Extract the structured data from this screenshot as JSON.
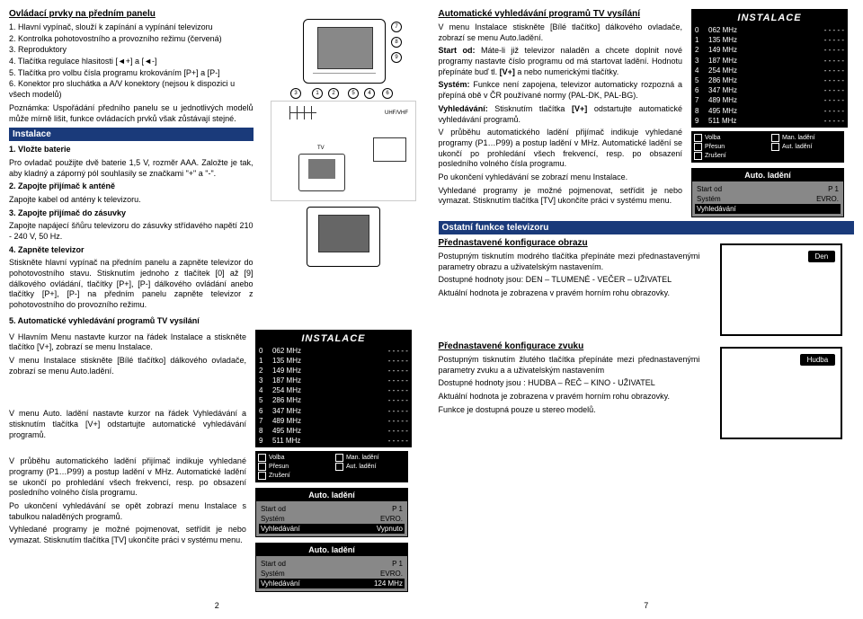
{
  "col1": {
    "title": "Ovládací prvky na předním panelu",
    "items": [
      "1. Hlavní vypínač, slouží k zapínání a vypínání televizoru",
      "2. Kontrolka pohotovostního a provozního režimu (červená)",
      "3. Reproduktory",
      "4. Tlačítka regulace hlasitosti [◄+] a [◄-]",
      "5. Tlačítka pro volbu čísla programu krokováním [P+] a [P-]",
      "6. Konektor pro sluchátka a A/V konektory (nejsou k dispozici u všech modelů)"
    ],
    "note": "Poznámka: Uspořádání předního panelu se u jednotlivých modelů může mírně lišit, funkce ovládacích prvků však zůstávají stejné.",
    "instalace_header": "Instalace",
    "steps": {
      "s1_title": "1. Vložte baterie",
      "s1_text": "Pro ovladač použijte dvě baterie 1,5 V, rozměr AAA. Založte je tak, aby kladný a záporný pól souhlasily se značkami \"+\" a \"-\".",
      "s2_title": "2. Zapojte přijímač k anténě",
      "s2_text": "Zapojte kabel od antény k televizoru.",
      "s3_title": "3. Zapojte přijímač do zásuvky",
      "s3_text": "Zapojte napájecí šňůru televizoru do zásuvky střídavého napětí 210 - 240 V, 50 Hz.",
      "s4_title": "4. Zapněte televizor",
      "s4_text": "Stiskněte hlavní vypínač na předním panelu a zapněte televizor do pohotovostního stavu. Stisknutím jednoho z tlačítek [0] až [9] dálkového ovládání, tlačítky [P+], [P-] dálkového ovládání anebo tlačítky [P+], [P-] na předním panelu zapněte televizor z pohotovostního do provozního režimu.",
      "s5_title": "5. Automatické vyhledávání programů TV vysílání",
      "s5_text1": "V Hlavním Menu nastavte kurzor na řádek Instalace a stiskněte tlačítko [V+], zobrazí se menu Instalace.",
      "s5_text2": "V menu Instalace stiskněte [Bílé tlačítko] dálkového ovladače, zobrazí se menu Auto.ladění."
    },
    "lower1": "V menu Auto. ladění nastavte kurzor na řádek Vyhledávání a stisknutím tlačítka [V+] odstartujte automatické vyhledávání programů.",
    "lower2": "V průběhu automatického ladění přijímač indikuje vyhledané programy (P1…P99) a postup ladění v MHz. Automatické ladění se ukončí po prohledání všech frekvencí, resp. po obsazení posledního volného čísla programu.",
    "lower3": "Po ukončení vyhledávání se opět zobrazí menu Instalace s tabulkou naladěných programů.",
    "lower4": "Vyhledané programy je možné pojmenovat, setřídit je nebo vymazat. Stisknutím tlačítka [TV] ukončíte práci v systému menu.",
    "instalace_panel_header": "INSTALACE",
    "instalace_rows": [
      [
        "0",
        "062 MHz",
        "- - - - -"
      ],
      [
        "1",
        "135 MHz",
        "- - - - -"
      ],
      [
        "2",
        "149 MHz",
        "- - - - -"
      ],
      [
        "3",
        "187 MHz",
        "- - - - -"
      ],
      [
        "4",
        "254 MHz",
        "- - - - -"
      ],
      [
        "5",
        "286 MHz",
        "- - - - -"
      ],
      [
        "6",
        "347 MHz",
        "- - - - -"
      ],
      [
        "7",
        "489 MHz",
        "- - - - -"
      ],
      [
        "8",
        "495 MHz",
        "- - - - -"
      ],
      [
        "9",
        "511 MHz",
        "- - - - -"
      ]
    ],
    "legend": [
      [
        "Volba",
        "Man. ladění"
      ],
      [
        "Přesun",
        "Aut. ladění"
      ],
      [
        "Zrušení",
        ""
      ]
    ],
    "auto1_header": "Auto. ladění",
    "auto1_rows": [
      [
        "Start od",
        "P 1"
      ],
      [
        "Systém",
        "EVRO."
      ]
    ],
    "auto1_black": [
      "Vyhledávání",
      "Vypnuto"
    ],
    "auto2_header": "Auto. ladění",
    "auto2_rows": [
      [
        "Start od",
        "P 1"
      ],
      [
        "Systém",
        "EVRO."
      ]
    ],
    "auto2_black": [
      "Vyhledávání",
      "124 MHz"
    ],
    "page": "2"
  },
  "col2": {
    "title": "Automatické vyhledávání programů TV vysílání",
    "p1": "V menu Instalace stiskněte [Bílé tlačítko] dálkového ovladače, zobrazí se menu Auto.ladění.",
    "p2": "Start od: Máte-li již televizor naladěn a chcete doplnit nové programy nastavte číslo programu od má startovat ladění. Hodnotu přepínáte buď tl. [V+] a nebo numerickými tlačítky.",
    "p3": "Systém: Funkce není zapojena, televizor automaticky rozpozná a přepíná obě v ČR používané normy (PAL-DK, PAL-BG).",
    "p4": "Vyhledávání: Stisknutím tlačítka [V+] odstartujte automatické vyhledávání programů.",
    "p5": "V průběhu automatického ladění přijímač indikuje vyhledané programy (P1…P99) a postup ladění v MHz. Automatické ladění se ukončí po prohledání všech frekvencí, resp. po obsazení posledního volného čísla programu.",
    "p6": "Po ukončení vyhledávání se zobrazí menu Instalace.",
    "p7": "Vyhledané programy je možné pojmenovat, setřídit je nebo vymazat. Stisknutím tlačítka [TV] ukončíte práci v systému menu.",
    "header2": "Ostatní funkce televizoru",
    "sub1": "Přednastavené konfigurace obrazu",
    "sub1_p1": "Postupným tisknutím modrého tlačítka přepínáte mezi přednastavenými parametry obrazu a uživatelským nastavením.",
    "sub1_p2": "Dostupné hodnoty jsou: DEN – TLUMENÉ - VEČER – UŽIVATEL",
    "sub1_p3": "Aktuální hodnota je zobrazena v pravém horním rohu obrazovky.",
    "sub2": "Přednastavené konfigurace zvuku",
    "sub2_p1": "Postupným tisknutím žlutého tlačítka přepínáte mezi přednastavenými parametry zvuku a a uživatelským nastavením",
    "sub2_p2": "Dostupné hodnoty jsou : HUDBA – ŘEČ – KINO - UŽIVATEL",
    "sub2_p3": "Aktuální hodnota je zobrazena v pravém horním rohu obrazovky.",
    "sub2_p4": "Funkce je dostupná pouze u stereo modelů.",
    "instalace_panel_header": "INSTALACE",
    "instalace_rows": [
      [
        "0",
        "062 MHz",
        "- - - - -"
      ],
      [
        "1",
        "135 MHz",
        "- - - - -"
      ],
      [
        "2",
        "149 MHz",
        "- - - - -"
      ],
      [
        "3",
        "187 MHz",
        "- - - - -"
      ],
      [
        "4",
        "254 MHz",
        "- - - - -"
      ],
      [
        "5",
        "286 MHz",
        "- - - - -"
      ],
      [
        "6",
        "347 MHz",
        "- - - - -"
      ],
      [
        "7",
        "489 MHz",
        "- - - - -"
      ],
      [
        "8",
        "495 MHz",
        "- - - - -"
      ],
      [
        "9",
        "511 MHz",
        "- - - - -"
      ]
    ],
    "legend": [
      [
        "Volba",
        "Man. ladění"
      ],
      [
        "Přesun",
        "Aut. ladění"
      ],
      [
        "Zrušení",
        ""
      ]
    ],
    "auto_header": "Auto. ladění",
    "auto_rows": [
      [
        "Start od",
        "P 1"
      ],
      [
        "Systém",
        "EVRO."
      ]
    ],
    "auto_black": [
      "Vyhledávání",
      ""
    ],
    "btn_den": "Den",
    "btn_hudba": "Hudba",
    "page": "7"
  }
}
